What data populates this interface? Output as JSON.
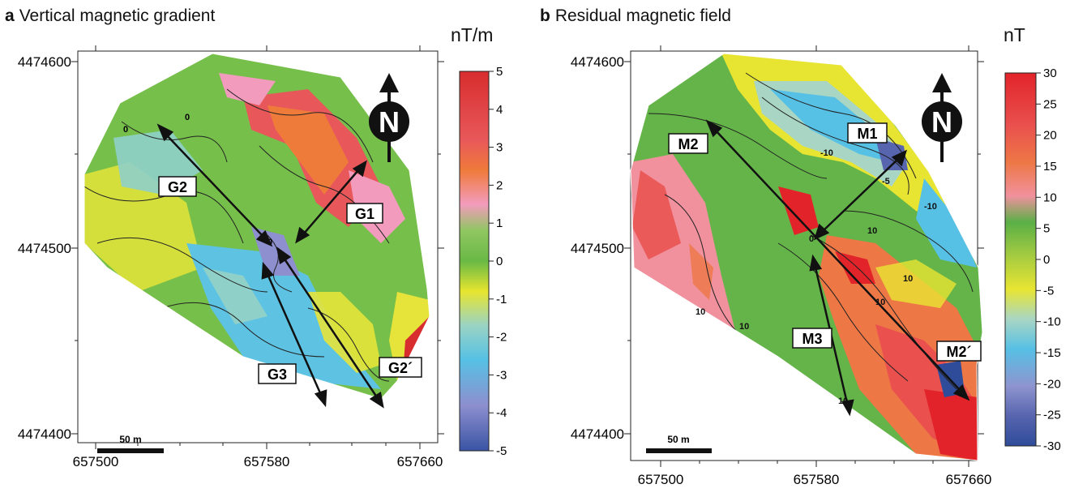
{
  "panels": [
    {
      "letter": "a",
      "title": "Vertical magnetic gradient",
      "unit": "nT/m",
      "colorbar_ticks": [
        "5",
        "4",
        "3",
        "2",
        "1",
        "0",
        "-1",
        "-2",
        "-3",
        "-4",
        "-5"
      ],
      "labels": [
        "G2",
        "G1",
        "G3",
        "G2´"
      ],
      "contour_labels": [
        "0",
        "0",
        "0"
      ],
      "y_ticks": [
        "4474600",
        "4474500",
        "4474400"
      ],
      "x_ticks": [
        "657500",
        "657580",
        "657660"
      ],
      "scale_label": "50 m",
      "north": "N"
    },
    {
      "letter": "b",
      "title": "Residual magnetic field",
      "unit": "nT",
      "colorbar_ticks": [
        "30",
        "25",
        "20",
        "15",
        "10",
        "5",
        "0",
        "-5",
        "-10",
        "-15",
        "-20",
        "-25",
        "-30"
      ],
      "labels": [
        "M2",
        "M1",
        "M3",
        "M2´"
      ],
      "contour_labels": [
        "-10",
        "0",
        "10",
        "10",
        "10",
        "10",
        "-10",
        "10",
        "-5",
        "10"
      ],
      "y_ticks": [
        "4474600",
        "4474500",
        "4474400"
      ],
      "x_ticks": [
        "657500",
        "657580",
        "657660"
      ],
      "scale_label": "50 m",
      "north": "N"
    }
  ],
  "colors": {
    "scale_a": [
      "#d82d2e",
      "#e6605c",
      "#ef7b3a",
      "#f39bbd",
      "#6fbd45",
      "#a6c93a",
      "#e9e62e",
      "#8fd0c9",
      "#5ec3e3",
      "#8d8fcf",
      "#3a54a4"
    ],
    "scale_b": [
      "#e2242a",
      "#e9504e",
      "#ee7746",
      "#f08a52",
      "#f0919d",
      "#5aaf46",
      "#9cc842",
      "#e8e532",
      "#a9d6c4",
      "#57c0e5",
      "#8e94cf",
      "#5764ae",
      "#2f4c9a"
    ]
  }
}
